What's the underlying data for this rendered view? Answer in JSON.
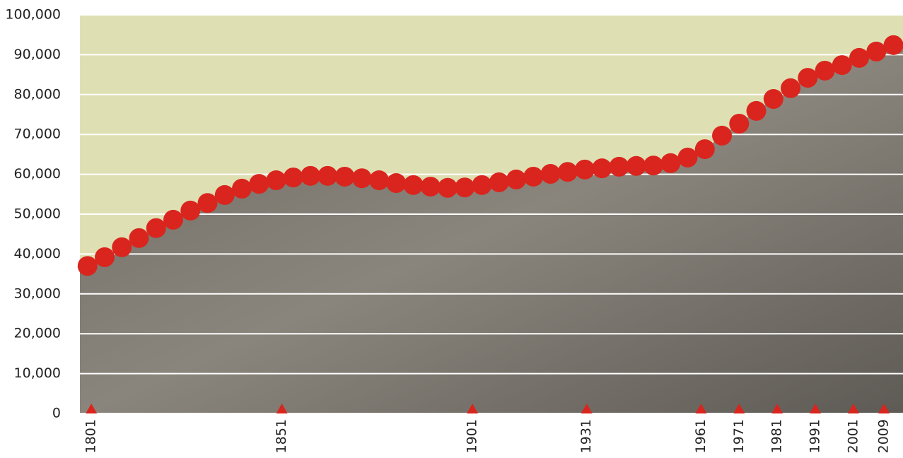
{
  "chart_data": {
    "type": "scatter",
    "x": [
      1800,
      1804.5,
      1809,
      1813.5,
      1818,
      1822.5,
      1827,
      1831.5,
      1836,
      1840.5,
      1845,
      1849.5,
      1854,
      1858.5,
      1863,
      1867.5,
      1872,
      1876.5,
      1881,
      1885.5,
      1890,
      1894.5,
      1899,
      1903.5,
      1908,
      1912.5,
      1917,
      1921.5,
      1926,
      1930.5,
      1935,
      1939.5,
      1944,
      1948.5,
      1953,
      1957.5,
      1962,
      1966.5,
      1971,
      1975.5,
      1980,
      1984.5,
      1989,
      1993.5,
      1998,
      2002.5,
      2007,
      2011.5
    ],
    "series": [
      {
        "color": "#d9251d",
        "values": [
          37000,
          39200,
          41700,
          44000,
          46500,
          48600,
          50900,
          52800,
          54800,
          56400,
          57600,
          58500,
          59200,
          59600,
          59600,
          59400,
          59000,
          58500,
          57800,
          57300,
          56900,
          56600,
          56700,
          57300,
          58000,
          58700,
          59400,
          60100,
          60600,
          61200,
          61500,
          61900,
          62100,
          62200,
          62800,
          64200,
          66300,
          69700,
          72700,
          75900,
          78900,
          81600,
          84200,
          86000,
          87400,
          89200,
          90800,
          92400
        ]
      }
    ],
    "xlim": [
      1798,
      2014
    ],
    "xticks": [
      1801,
      1851,
      1901,
      1931,
      1961,
      1971,
      1981,
      1991,
      2001,
      2009
    ],
    "ylim": [
      0,
      100000
    ],
    "yticks": [
      {
        "value": 0,
        "label": "0"
      },
      {
        "value": 10000,
        "label": "10,000"
      },
      {
        "value": 20000,
        "label": "20,000"
      },
      {
        "value": 30000,
        "label": "30,000"
      },
      {
        "value": 40000,
        "label": "40,000"
      },
      {
        "value": 50000,
        "label": "50,000"
      },
      {
        "value": 60000,
        "label": "60,000"
      },
      {
        "value": 70000,
        "label": "70,000"
      },
      {
        "value": 80000,
        "label": "80,000"
      },
      {
        "value": 90000,
        "label": "90,000"
      },
      {
        "value": 100000,
        "label": "100,000"
      }
    ],
    "grid": true
  }
}
